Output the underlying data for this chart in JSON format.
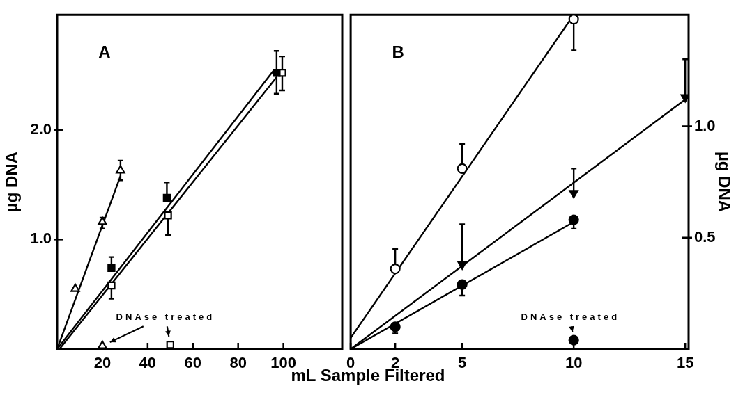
{
  "chart_data": [
    {
      "type": "scatter",
      "xlabel": "mL Sample Filtered",
      "ylabel": "µg DNA",
      "xlim": [
        0,
        126
      ],
      "ylim": [
        0,
        3.05
      ],
      "xticks": [
        20,
        40,
        60,
        80,
        100
      ],
      "yticks": [
        {
          "value": 1,
          "label": "1.0"
        },
        {
          "value": 2,
          "label": "2.0"
        }
      ],
      "annotations": [
        "A",
        "DNAse treated"
      ],
      "series": [
        {
          "type": "scatter",
          "color": "#000000",
          "marker": "triangle",
          "x": [
            8,
            20,
            28
          ],
          "values": [
            0.55,
            1.16,
            1.63
          ],
          "errors": [
            null,
            [
              1.1,
              1.2
            ],
            [
              1.54,
              1.72
            ]
          ]
        },
        {
          "type": "line",
          "color": "#000000",
          "marker": "none",
          "x": [
            0,
            28
          ],
          "values": [
            0,
            1.58
          ]
        },
        {
          "type": "scatter",
          "color": "#000000",
          "marker": "square",
          "x": [
            24,
            48.5,
            97
          ],
          "values": [
            0.74,
            1.38,
            2.52
          ],
          "errors": [
            [
              0.74,
              0.84
            ],
            [
              1.38,
              1.52
            ],
            [
              2.33,
              2.72
            ]
          ]
        },
        {
          "type": "line",
          "color": "#000000",
          "marker": "none",
          "x": [
            0,
            96
          ],
          "values": [
            0,
            2.55
          ]
        },
        {
          "type": "scatter",
          "color": "#000000",
          "marker": "square",
          "x": [
            24,
            49,
            99.5
          ],
          "values": [
            0.58,
            1.22,
            2.52
          ],
          "errors": [
            [
              0.46,
              0.58
            ],
            [
              1.04,
              1.22
            ],
            [
              2.36,
              2.67
            ]
          ]
        },
        {
          "type": "line",
          "color": "#000000",
          "marker": "none",
          "x": [
            1,
            97
          ],
          "values": [
            0,
            2.48
          ]
        },
        {
          "type": "scatter",
          "color": "#000000",
          "marker": "triangle",
          "x": [
            20
          ],
          "values": [
            0.03
          ]
        },
        {
          "type": "scatter",
          "color": "#000000",
          "marker": "square",
          "x": [
            50
          ],
          "values": [
            0.04
          ]
        }
      ]
    },
    {
      "type": "scatter",
      "y2label": "µg DNA",
      "xlim": [
        0,
        15.15
      ],
      "xticks": [
        0,
        2,
        5,
        10,
        15
      ],
      "y2lim": [
        0,
        1.5
      ],
      "y2ticks": [
        0.5,
        {
          "value": 1,
          "label": "1.0"
        }
      ],
      "annotations": [
        "B",
        "DNAse treated"
      ],
      "series": [
        {
          "type": "scatter",
          "axis": "y2",
          "color": "#000000",
          "marker": "circle",
          "x": [
            2,
            5,
            10
          ],
          "values": [
            0.36,
            0.81,
            1.48
          ],
          "errors": [
            [
              0.36,
              0.45
            ],
            [
              0.81,
              0.92
            ],
            [
              1.34,
              1.48
            ]
          ]
        },
        {
          "type": "line",
          "axis": "y2",
          "color": "#000000",
          "marker": "none",
          "x": [
            0,
            10
          ],
          "values": [
            0.05,
            1.5
          ]
        },
        {
          "type": "scatter",
          "axis": "y2",
          "color": "#000000",
          "marker": "triangle",
          "x": [
            5,
            10,
            15
          ],
          "values": [
            0.38,
            0.7,
            1.13
          ],
          "errors": [
            [
              0.38,
              0.56
            ],
            [
              0.7,
              0.81
            ],
            [
              1.13,
              1.3
            ]
          ]
        },
        {
          "type": "line",
          "axis": "y2",
          "color": "#000000",
          "marker": "none",
          "x": [
            0,
            15
          ],
          "values": [
            0,
            1.12
          ]
        },
        {
          "type": "scatter",
          "axis": "y2",
          "color": "#000000",
          "marker": "circle",
          "x": [
            2,
            5,
            10
          ],
          "values": [
            0.1,
            0.29,
            0.58
          ],
          "errors": [
            [
              0.07,
              0.1
            ],
            [
              0.24,
              0.29
            ],
            [
              0.54,
              0.58
            ]
          ]
        },
        {
          "type": "line",
          "axis": "y2",
          "color": "#000000",
          "marker": "none",
          "x": [
            0,
            10
          ],
          "values": [
            0,
            0.57
          ]
        },
        {
          "type": "scatter",
          "axis": "y2",
          "color": "#000000",
          "marker": "circle",
          "x": [
            10
          ],
          "values": [
            0.04
          ]
        }
      ]
    }
  ]
}
